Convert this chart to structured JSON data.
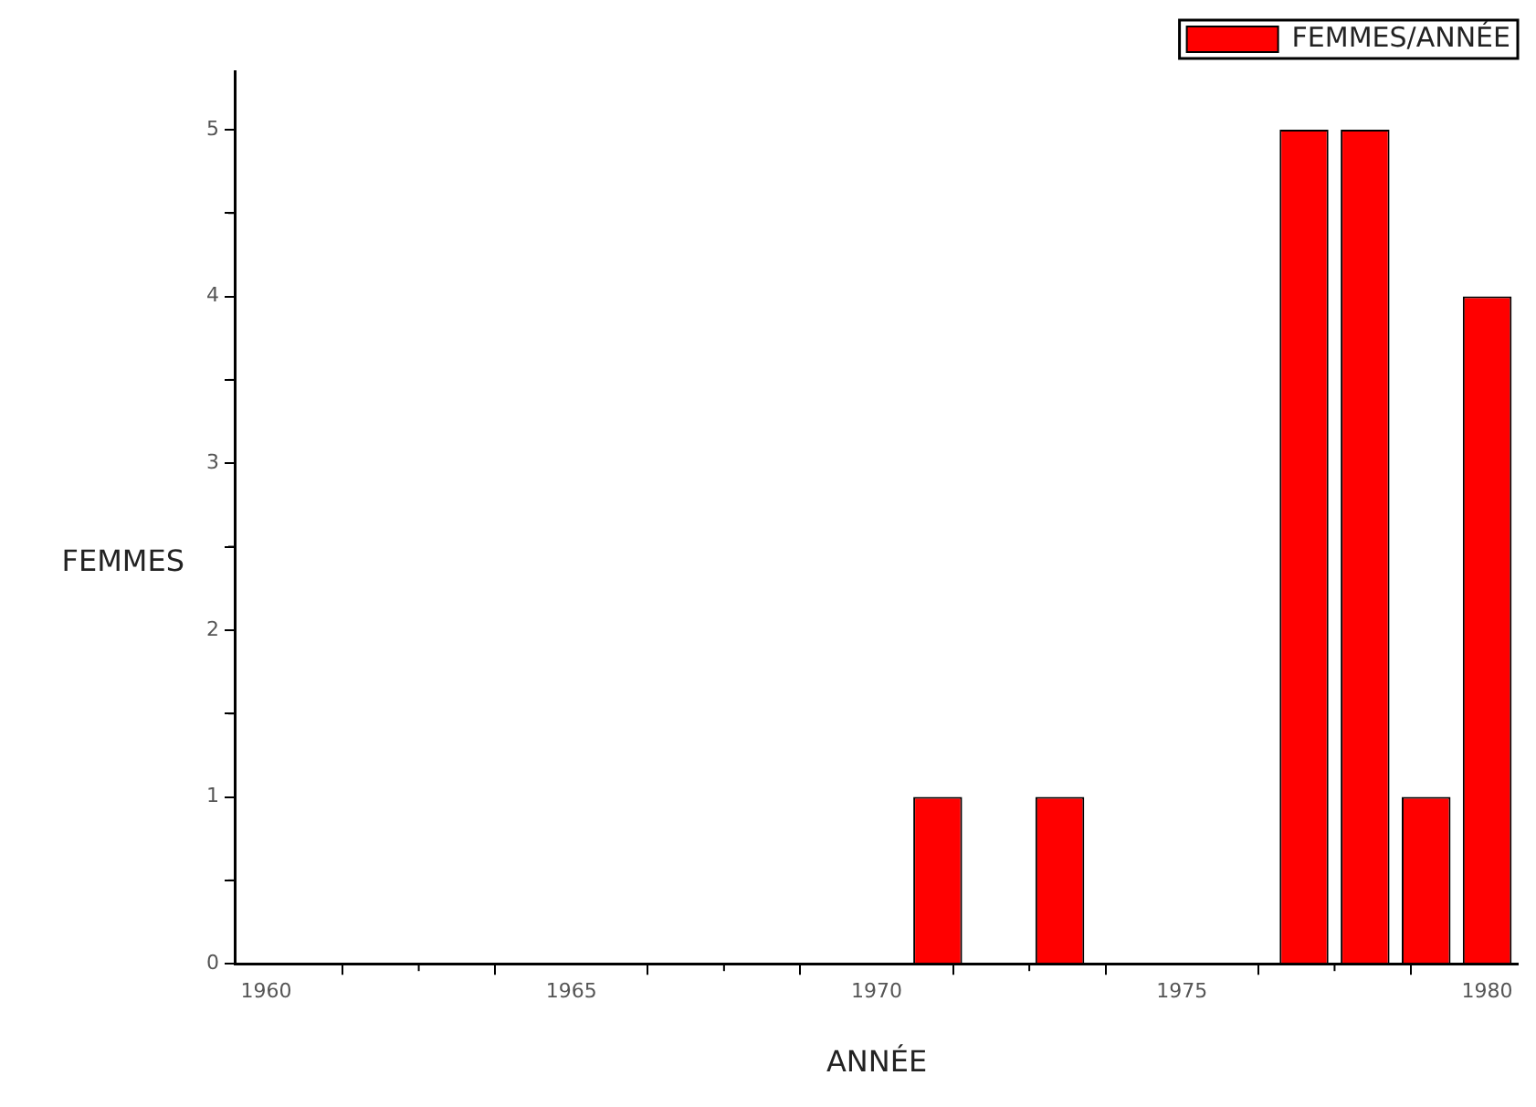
{
  "chart_data": {
    "type": "bar",
    "xlabel": "ANNÉE",
    "ylabel": "FEMMES",
    "x": [
      1971,
      1973,
      1977,
      1978,
      1979,
      1980
    ],
    "series": [
      {
        "name": "FEMMES/ANNÉE",
        "color": "#ff0000",
        "values": [
          1,
          1,
          5,
          5,
          1,
          4
        ]
      }
    ],
    "xlim": [
      1959.5,
      1980.5
    ],
    "xticks": [
      1960,
      {
        "value": 1962.5,
        "label": null
      },
      1965,
      {
        "value": 1967.5,
        "label": null
      },
      1970,
      {
        "value": 1972.5,
        "label": null
      },
      1975,
      {
        "value": 1977.5,
        "label": null
      },
      1980
    ],
    "ylim": [
      0,
      5.35
    ],
    "yticks": [
      0,
      {
        "value": 0.5,
        "label": null
      },
      1,
      {
        "value": 1.5,
        "label": null
      },
      2,
      {
        "value": 2.5,
        "label": null
      },
      3,
      {
        "value": 3.5,
        "label": null
      },
      4,
      {
        "value": 4.5,
        "label": null
      },
      5
    ],
    "grid": false,
    "legend": "top right"
  }
}
